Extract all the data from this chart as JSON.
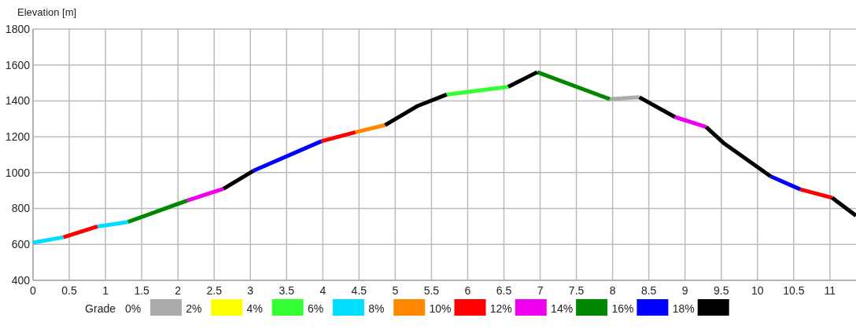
{
  "chart_data": {
    "type": "line",
    "ylabel": "Elevation [m]",
    "xlim": [
      0,
      11.36
    ],
    "ylim": [
      400,
      1800
    ],
    "xticks": [
      0,
      0.5,
      1,
      1.5,
      2,
      2.5,
      3,
      3.5,
      4,
      4.5,
      5,
      5.5,
      6,
      6.5,
      7,
      7.5,
      8,
      8.5,
      9,
      9.5,
      10,
      10.5,
      11
    ],
    "yticks": [
      400,
      600,
      800,
      1000,
      1200,
      1400,
      1600,
      1800
    ],
    "grid": true,
    "legend": "bottom",
    "legend_title": "Grade",
    "line_style": "solid",
    "series": [
      {
        "name": "0%",
        "color": "#aaaaaa",
        "x": [
          7.96,
          8.37
        ],
        "values": [
          1410,
          1420
        ]
      },
      {
        "name": "2%",
        "color": "#ffff00"
      },
      {
        "name": "4%",
        "color": "#33ff33",
        "x": [
          5.71,
          6.56
        ],
        "values": [
          1435,
          1478
        ]
      },
      {
        "name": "6%",
        "color": "#00ddff",
        "x": [
          0,
          0.42,
          0.65,
          0.89,
          1.31
        ],
        "values": [
          610,
          640,
          null,
          700,
          725
        ]
      },
      {
        "name": "8%",
        "color": "#ff8800",
        "x": [
          4.45,
          4.86
        ],
        "values": [
          1225,
          1265
        ]
      },
      {
        "name": "10%",
        "color": "#ff0000",
        "x": [
          0.42,
          0.89,
          2.5,
          3.98,
          4.45,
          7,
          10.59,
          11.03
        ],
        "values": [
          640,
          700,
          null,
          1175,
          1225,
          null,
          907,
          860
        ]
      },
      {
        "name": "12%",
        "color": "#ee00ee",
        "x": [
          2.13,
          2.63,
          5,
          8.86,
          9.29
        ],
        "values": [
          845,
          910,
          null,
          1310,
          1255
        ]
      },
      {
        "name": "14%",
        "color": "#008800",
        "x": [
          1.31,
          2.13,
          4,
          6.96,
          7.96
        ],
        "values": [
          725,
          845,
          null,
          1560,
          1410
        ]
      },
      {
        "name": "16%",
        "color": "#0000ff",
        "x": [
          3.04,
          3.98,
          7,
          10.18,
          10.59
        ],
        "values": [
          1010,
          1175,
          null,
          980,
          907
        ]
      },
      {
        "name": "18%",
        "color": "#000000",
        "x": [
          2.63,
          3.04,
          4,
          4.86,
          5.3,
          5.71,
          6,
          6.56,
          6.96,
          7.5,
          8.37,
          8.86,
          9,
          9.29,
          9.53,
          10.18,
          10.5,
          11.03,
          11.36
        ],
        "values": [
          910,
          1010,
          null,
          1265,
          1370,
          1435,
          null,
          1478,
          1560,
          null,
          1420,
          1310,
          null,
          1255,
          1166,
          980,
          null,
          860,
          760
        ]
      }
    ]
  }
}
